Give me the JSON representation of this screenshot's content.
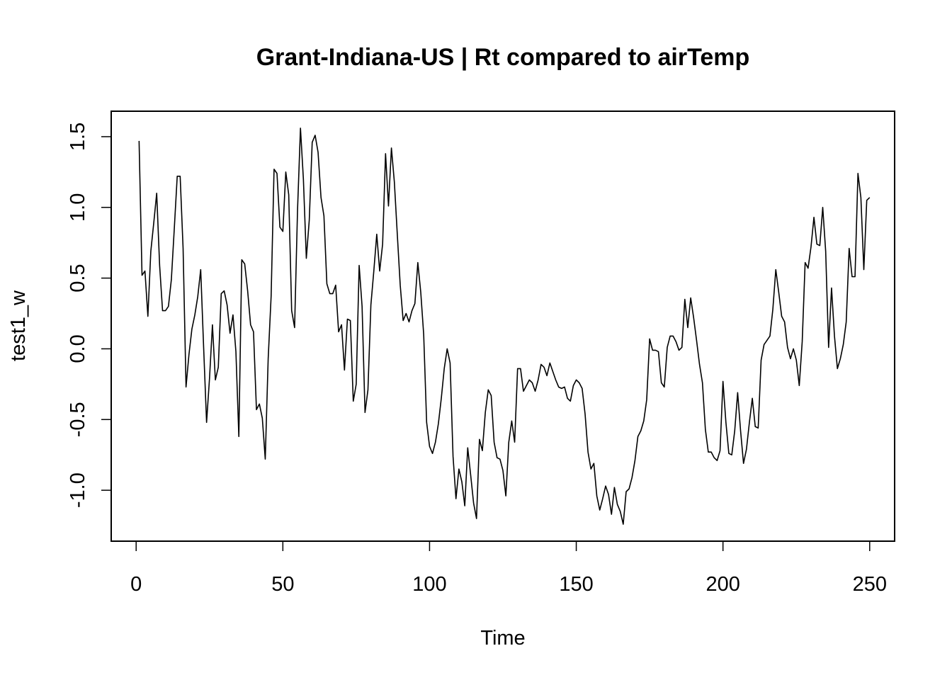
{
  "chart_data": {
    "type": "line",
    "title": "Grant-Indiana-US | Rt compared to airTemp",
    "xlabel": "Time",
    "ylabel": "test1_w",
    "xlim": [
      -8.5,
      258.5
    ],
    "ylim": [
      -1.36,
      1.68
    ],
    "x_ticks": [
      0,
      50,
      100,
      150,
      200,
      250
    ],
    "x_tick_labels": [
      "0",
      "50",
      "100",
      "150",
      "200",
      "250"
    ],
    "y_ticks": [
      -1.0,
      -0.5,
      0.0,
      0.5,
      1.0,
      1.5
    ],
    "y_tick_labels": [
      "-1.0",
      "-0.5",
      "0.0",
      "0.5",
      "1.0",
      "1.5"
    ],
    "grid": false,
    "legend": "none",
    "line_color": "#000000",
    "series": [
      {
        "x_start": 1,
        "values": [
          1.47,
          0.52,
          0.55,
          0.23,
          0.69,
          0.89,
          1.1,
          0.59,
          0.27,
          0.27,
          0.3,
          0.49,
          0.85,
          1.22,
          1.22,
          0.71,
          -0.27,
          -0.04,
          0.14,
          0.24,
          0.37,
          0.56,
          0.01,
          -0.52,
          -0.21,
          0.17,
          -0.22,
          -0.13,
          0.39,
          0.41,
          0.31,
          0.11,
          0.24,
          -0.02,
          -0.62,
          0.63,
          0.6,
          0.41,
          0.17,
          0.12,
          -0.43,
          -0.39,
          -0.49,
          -0.78,
          -0.07,
          0.37,
          1.27,
          1.24,
          0.86,
          0.83,
          1.25,
          1.09,
          0.27,
          0.15,
          0.98,
          1.56,
          1.2,
          0.64,
          0.91,
          1.46,
          1.51,
          1.39,
          1.07,
          0.94,
          0.46,
          0.39,
          0.39,
          0.45,
          0.12,
          0.17,
          -0.15,
          0.21,
          0.2,
          -0.37,
          -0.25,
          0.59,
          0.3,
          -0.45,
          -0.29,
          0.31,
          0.55,
          0.81,
          0.55,
          0.74,
          1.38,
          1.01,
          1.42,
          1.18,
          0.81,
          0.45,
          0.2,
          0.25,
          0.19,
          0.27,
          0.32,
          0.61,
          0.4,
          0.1,
          -0.52,
          -0.69,
          -0.74,
          -0.66,
          -0.53,
          -0.35,
          -0.14,
          0.0,
          -0.1,
          -0.76,
          -1.06,
          -0.85,
          -0.94,
          -1.11,
          -0.7,
          -0.89,
          -1.09,
          -1.2,
          -0.64,
          -0.72,
          -0.45,
          -0.29,
          -0.33,
          -0.66,
          -0.77,
          -0.78,
          -0.86,
          -1.04,
          -0.66,
          -0.51,
          -0.66,
          -0.14,
          -0.14,
          -0.3,
          -0.26,
          -0.22,
          -0.24,
          -0.3,
          -0.22,
          -0.11,
          -0.13,
          -0.19,
          -0.1,
          -0.16,
          -0.22,
          -0.27,
          -0.28,
          -0.27,
          -0.35,
          -0.37,
          -0.26,
          -0.22,
          -0.24,
          -0.28,
          -0.46,
          -0.73,
          -0.85,
          -0.81,
          -1.04,
          -1.14,
          -1.06,
          -0.97,
          -1.03,
          -1.17,
          -0.98,
          -1.1,
          -1.15,
          -1.24,
          -1.01,
          -0.99,
          -0.91,
          -0.79,
          -0.62,
          -0.58,
          -0.51,
          -0.36,
          0.07,
          -0.01,
          -0.01,
          -0.02,
          -0.24,
          -0.27,
          0.01,
          0.09,
          0.09,
          0.05,
          -0.01,
          0.01,
          0.35,
          0.15,
          0.36,
          0.22,
          0.06,
          -0.11,
          -0.24,
          -0.57,
          -0.73,
          -0.73,
          -0.77,
          -0.79,
          -0.72,
          -0.23,
          -0.52,
          -0.74,
          -0.75,
          -0.58,
          -0.31,
          -0.58,
          -0.81,
          -0.71,
          -0.52,
          -0.35,
          -0.55,
          -0.56,
          -0.08,
          0.03,
          0.06,
          0.09,
          0.28,
          0.56,
          0.4,
          0.23,
          0.19,
          0.01,
          -0.07,
          0.0,
          -0.08,
          -0.26,
          0.05,
          0.61,
          0.57,
          0.72,
          0.93,
          0.74,
          0.73,
          1.0,
          0.69,
          0.01,
          0.43,
          0.09,
          -0.14,
          -0.07,
          0.03,
          0.19,
          0.71,
          0.51,
          0.51,
          1.24,
          1.07,
          0.56,
          1.05,
          1.07
        ]
      }
    ]
  }
}
